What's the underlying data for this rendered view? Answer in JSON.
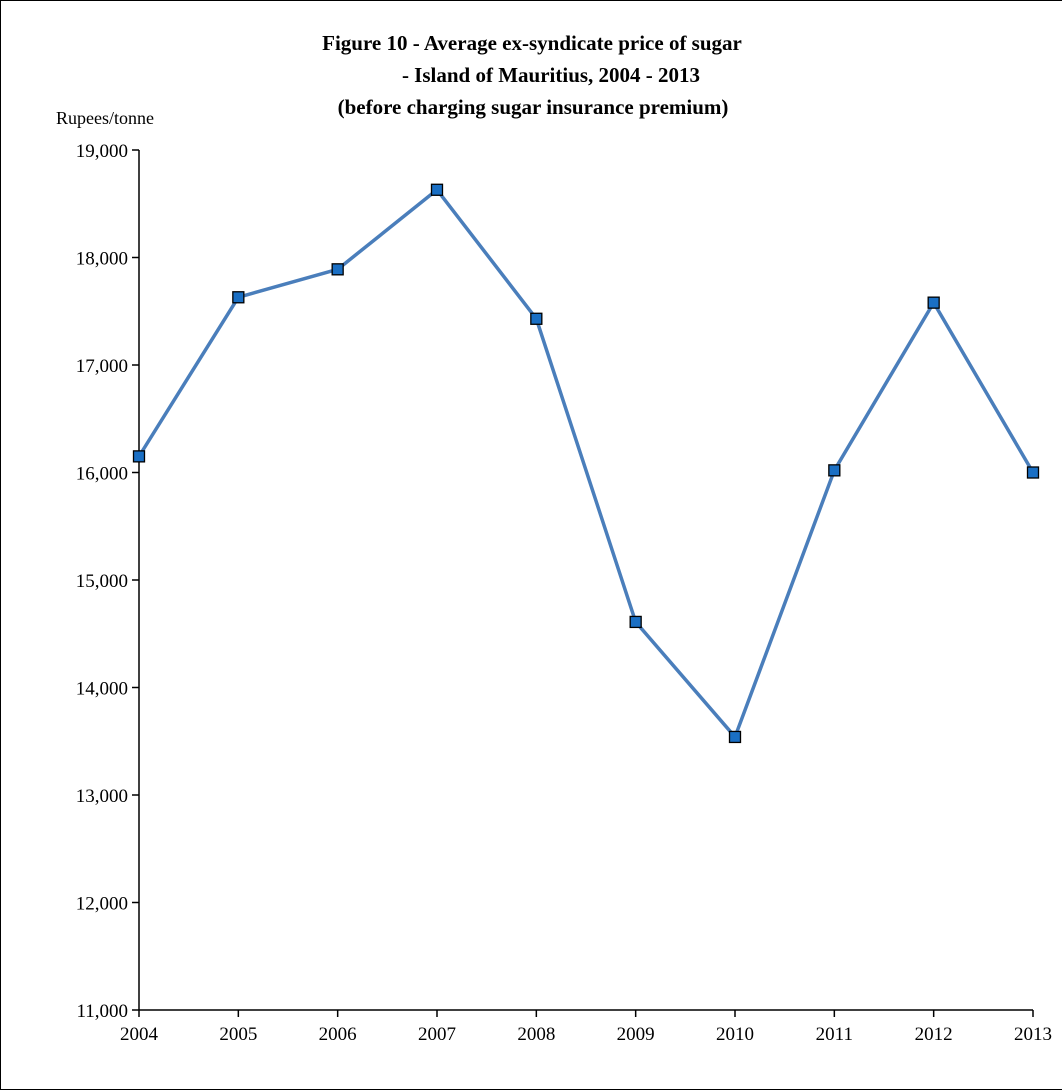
{
  "chart_data": {
    "type": "line",
    "title_lines": [
      "Figure 10 - Average ex-syndicate price of sugar",
      "- Island of Mauritius, 2004 - 2013",
      "(before charging sugar insurance premium)"
    ],
    "ylabel": "Rupees/tonne",
    "xlabel": "",
    "categories": [
      "2004",
      "2005",
      "2006",
      "2007",
      "2008",
      "2009",
      "2010",
      "2011",
      "2012",
      "2013"
    ],
    "series": [
      {
        "values": [
          16150,
          17630,
          17890,
          18630,
          17430,
          14610,
          13540,
          16020,
          17580,
          16000
        ],
        "line_color": "#4a7ebb",
        "marker": "square",
        "marker_color": "#1a6fc4"
      }
    ],
    "ylim": [
      11000,
      19000
    ],
    "yticks": [
      11000,
      12000,
      13000,
      14000,
      15000,
      16000,
      17000,
      18000,
      19000
    ],
    "ytick_labels": [
      "11,000",
      "12,000",
      "13,000",
      "14,000",
      "15,000",
      "16,000",
      "17,000",
      "18,000",
      "19,000"
    ],
    "grid": false,
    "legend": "none"
  }
}
